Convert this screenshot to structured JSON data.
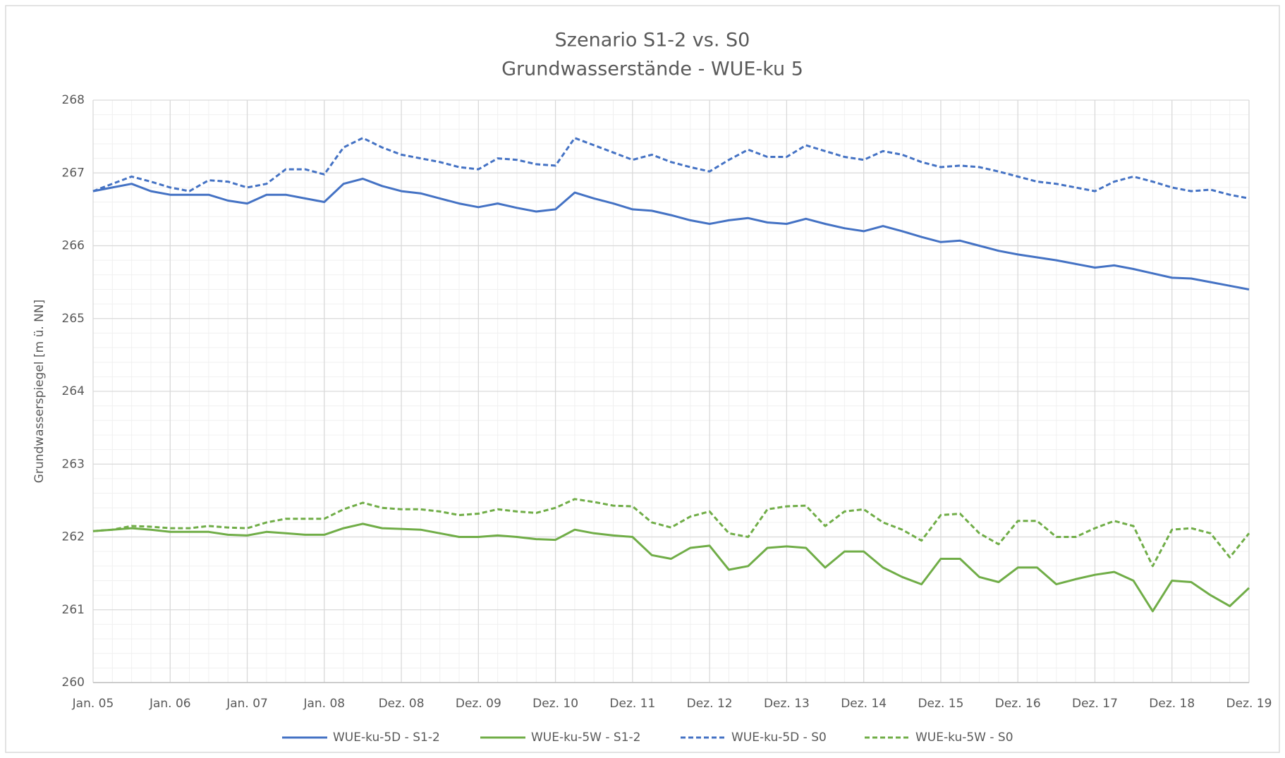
{
  "chart_data": {
    "type": "line",
    "title": "Szenario S1-2 vs. S0",
    "subtitle": "Grundwasserstände - WUE-ku 5",
    "y_label": "Grundwasserspiegel [m ü. NN]",
    "categories": [
      "Jan. 05",
      null,
      null,
      null,
      "Jan. 06",
      null,
      null,
      null,
      "Jan. 07",
      null,
      null,
      null,
      "Jan. 08",
      null,
      null,
      null,
      "Dez. 08",
      null,
      null,
      null,
      "Dez. 09",
      null,
      null,
      null,
      "Dez. 10",
      null,
      null,
      null,
      "Dez. 11",
      null,
      null,
      null,
      "Dez. 12",
      null,
      null,
      null,
      "Dez. 13",
      null,
      null,
      null,
      "Dez. 14",
      null,
      null,
      null,
      "Dez. 15",
      null,
      null,
      null,
      "Dez. 16",
      null,
      null,
      null,
      "Dez. 17",
      null,
      null,
      null,
      "Dez. 18",
      null,
      null,
      null,
      "Dez. 19"
    ],
    "ylim": [
      260,
      268
    ],
    "yticks": [
      260,
      261,
      262,
      263,
      264,
      265,
      266,
      267,
      268
    ],
    "grid": true,
    "legend": "bottom",
    "series": [
      {
        "name": "WUE-ku-5D - S1-2",
        "color": "#4472c4",
        "dashed": false,
        "values": [
          266.75,
          266.8,
          266.85,
          266.75,
          266.7,
          266.7,
          266.7,
          266.62,
          266.58,
          266.7,
          266.7,
          266.65,
          266.6,
          266.85,
          266.92,
          266.82,
          266.75,
          266.72,
          266.65,
          266.58,
          266.53,
          266.58,
          266.52,
          266.47,
          266.5,
          266.73,
          266.65,
          266.58,
          266.5,
          266.48,
          266.42,
          266.35,
          266.3,
          266.35,
          266.38,
          266.32,
          266.3,
          266.37,
          266.3,
          266.24,
          266.2,
          266.27,
          266.2,
          266.12,
          266.05,
          266.07,
          266.0,
          265.93,
          265.88,
          265.84,
          265.8,
          265.75,
          265.7,
          265.73,
          265.68,
          265.62,
          265.56,
          265.55,
          265.5,
          265.45,
          265.4
        ]
      },
      {
        "name": "WUE-ku-5W - S1-2",
        "color": "#70ad47",
        "dashed": false,
        "values": [
          262.08,
          262.1,
          262.12,
          262.1,
          262.07,
          262.07,
          262.07,
          262.03,
          262.02,
          262.07,
          262.05,
          262.03,
          262.03,
          262.12,
          262.18,
          262.12,
          262.11,
          262.1,
          262.05,
          262.0,
          262.0,
          262.02,
          262.0,
          261.97,
          261.96,
          262.1,
          262.05,
          262.02,
          262.0,
          261.75,
          261.7,
          261.85,
          261.88,
          261.55,
          261.6,
          261.85,
          261.87,
          261.85,
          261.58,
          261.8,
          261.8,
          261.58,
          261.45,
          261.35,
          261.7,
          261.7,
          261.45,
          261.38,
          261.58,
          261.58,
          261.35,
          261.42,
          261.48,
          261.52,
          261.4,
          260.98,
          261.4,
          261.38,
          261.2,
          261.05,
          261.3
        ]
      },
      {
        "name": "WUE-ku-5D - S0",
        "color": "#4472c4",
        "dashed": true,
        "values": [
          266.75,
          266.85,
          266.95,
          266.88,
          266.8,
          266.75,
          266.9,
          266.88,
          266.8,
          266.85,
          267.05,
          267.05,
          266.98,
          267.35,
          267.48,
          267.35,
          267.25,
          267.2,
          267.15,
          267.08,
          267.05,
          267.2,
          267.18,
          267.12,
          267.1,
          267.48,
          267.38,
          267.28,
          267.18,
          267.25,
          267.15,
          267.08,
          267.02,
          267.18,
          267.32,
          267.22,
          267.22,
          267.38,
          267.3,
          267.22,
          267.18,
          267.3,
          267.25,
          267.15,
          267.08,
          267.1,
          267.08,
          267.02,
          266.95,
          266.88,
          266.85,
          266.8,
          266.75,
          266.88,
          266.95,
          266.88,
          266.8,
          266.75,
          266.77,
          266.7,
          266.65
        ]
      },
      {
        "name": "WUE-ku-5W - S0",
        "color": "#70ad47",
        "dashed": true,
        "values": [
          262.08,
          262.1,
          262.15,
          262.14,
          262.12,
          262.12,
          262.15,
          262.13,
          262.12,
          262.2,
          262.25,
          262.25,
          262.25,
          262.38,
          262.47,
          262.4,
          262.38,
          262.38,
          262.35,
          262.3,
          262.32,
          262.38,
          262.35,
          262.33,
          262.4,
          262.52,
          262.48,
          262.43,
          262.42,
          262.2,
          262.13,
          262.28,
          262.35,
          262.05,
          262.0,
          262.38,
          262.42,
          262.43,
          262.15,
          262.35,
          262.38,
          262.2,
          262.1,
          261.95,
          262.3,
          262.32,
          262.05,
          261.9,
          262.22,
          262.22,
          262.0,
          262.0,
          262.12,
          262.22,
          262.15,
          261.6,
          262.1,
          262.12,
          262.05,
          261.72,
          262.05
        ]
      }
    ]
  }
}
